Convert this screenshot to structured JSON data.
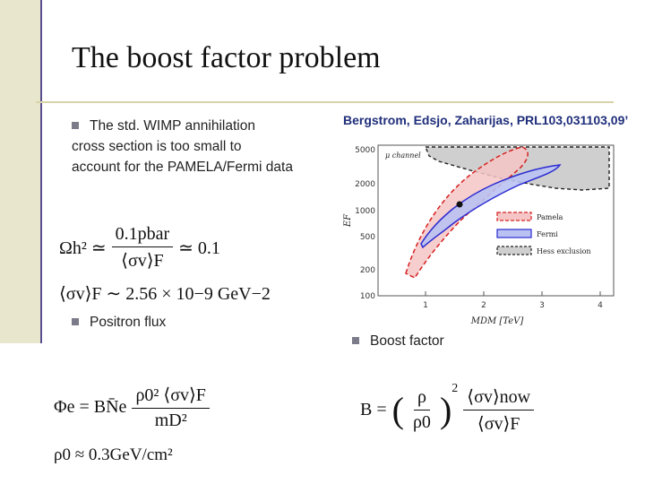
{
  "slide": {
    "title": "The boost factor problem",
    "reference": "Bergstrom, Edsjo, Zaharijas, PRL103,031103,09’",
    "bullet1_line1": "The std. WIMP annihilation",
    "bullet1_line2": "cross section is too small to",
    "bullet1_line3": "account for the  PAMELA/Fermi data",
    "bullet2": "Positron flux",
    "bullet3": "Boost factor"
  },
  "equations": {
    "omega_lhs": "Ωh² ≃",
    "omega_num": "0.1pbar",
    "omega_den": "⟨σv⟩F",
    "omega_rhs": "≃ 0.1",
    "sigmav": "⟨σv⟩F ∼ 2.56 × 10−9 GeV−2",
    "flux_lhs": "Φe = BN̄e",
    "flux_num": "ρ0² ⟨σv⟩F",
    "flux_den": "mD²",
    "rho0": "ρ0 ≈ 0.3GeV/cm²",
    "boost_lhs": "B =",
    "boost_f1_num": "ρ",
    "boost_f1_den": "ρ0",
    "boost_power": "2",
    "boost_f2_num": "⟨σv⟩now",
    "boost_f2_den": "⟨σv⟩F"
  },
  "plot": {
    "channel_label": "μ channel",
    "y_axis_label": "EF",
    "x_axis_label": "MDM [TeV]",
    "y_ticks": [
      "5000",
      "2000",
      "1000",
      "500",
      "200",
      "100"
    ],
    "x_ticks": [
      "1",
      "2",
      "3",
      "4"
    ],
    "legend": [
      {
        "label": "Pamela",
        "fill": "#f6c6c6",
        "stroke": "#d62020"
      },
      {
        "label": "Fermi",
        "fill": "#b9c2f2",
        "stroke": "#2a2ad0"
      },
      {
        "label": "Hess exclusion",
        "fill": "#cfcfcf",
        "stroke": "#222222"
      }
    ],
    "colors": {
      "pamela": "#d62020",
      "fermi": "#2a2ad0",
      "hess": "#222222"
    }
  }
}
